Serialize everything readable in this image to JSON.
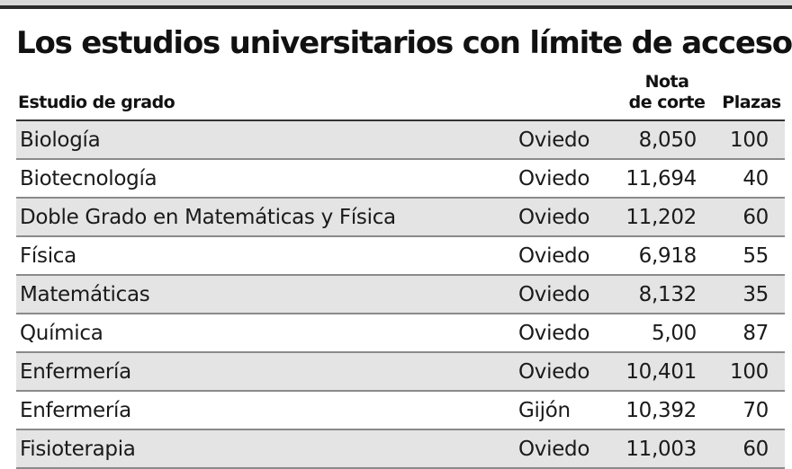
{
  "title": "Los estudios universitarios con límite de acceso",
  "columns": {
    "study": "Estudio de grado",
    "nota_line1": "Nota",
    "nota_line2": "de corte",
    "plazas": "Plazas"
  },
  "rows": [
    {
      "name": "Biología",
      "campus": "Oviedo",
      "nota": "8,050",
      "plazas": "100"
    },
    {
      "name": "Biotecnología",
      "campus": "Oviedo",
      "nota": "11,694",
      "plazas": "40"
    },
    {
      "name": "Doble Grado en Matemáticas y Física",
      "campus": "Oviedo",
      "nota": "11,202",
      "plazas": "60"
    },
    {
      "name": "Física",
      "campus": "Oviedo",
      "nota": "6,918",
      "plazas": "55"
    },
    {
      "name": "Matemáticas",
      "campus": "Oviedo",
      "nota": "8,132",
      "plazas": "35"
    },
    {
      "name": "Química",
      "campus": "Oviedo",
      "nota": "5,00",
      "plazas": "87"
    },
    {
      "name": "Enfermería",
      "campus": "Oviedo",
      "nota": "10,401",
      "plazas": "100"
    },
    {
      "name": "Enfermería",
      "campus": "Gijón",
      "nota": "10,392",
      "plazas": "70"
    },
    {
      "name": "Fisioterapia",
      "campus": "Oviedo",
      "nota": "11,003",
      "plazas": "60"
    }
  ],
  "colors": {
    "shaded_row": "#e4e4e4",
    "rule": "#8a8a8a",
    "text": "#1a1a1a"
  }
}
